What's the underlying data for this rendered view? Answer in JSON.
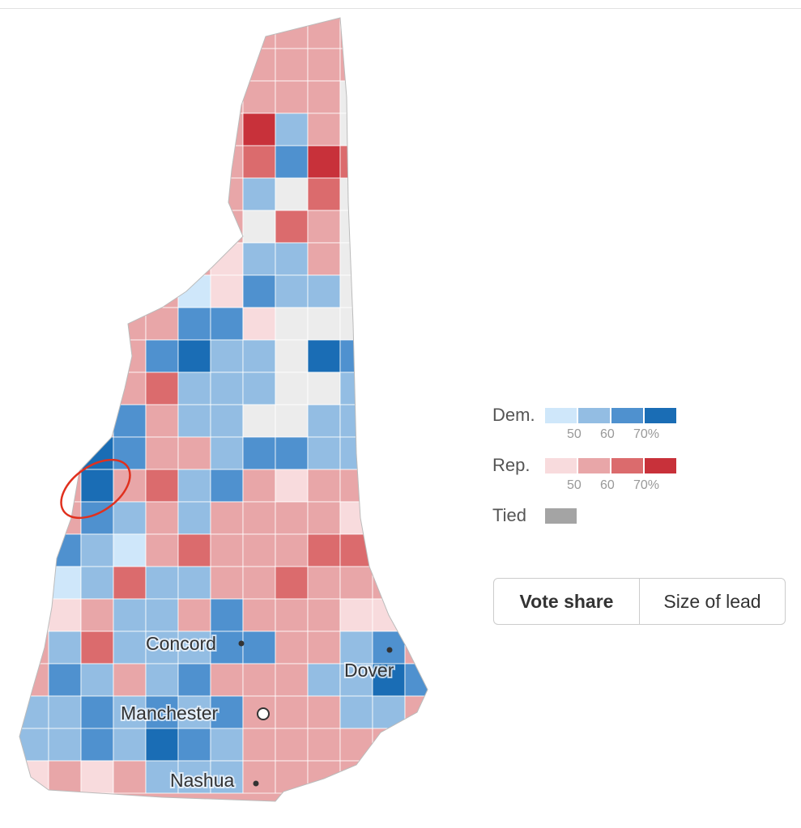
{
  "colors": {
    "a": "#cfe7fa",
    "b": "#93bde3",
    "c": "#4f91cf",
    "d": "#1a6db5",
    "e": "#f8dbdd",
    "f": "#e8a6a8",
    "g": "#db6b6d",
    "h": "#c8313a",
    "n": "#ececec",
    "t": "#a4a4a4"
  },
  "map": {
    "town_shading": [
      "........fff..",
      "........fff..",
      ".......fffn..",
      ".......hbfn..",
      ".......gchg..",
      ".......bngn..",
      ".......ngfn..",
      "......ebbfn..",
      ".....aecbbn..",
      "...ffccennnf.",
      "...fcdbbndcf.",
      "...fgbbbnnbb.",
      "...cfbbnnbbb.",
      "..dcffbccbbt.",
      "..dfgbcfeff..",
      "..cbfbffffe..",
      ".cbafgfffgg..",
      ".abgbbffgff..",
      ".efbbfcfffee.",
      ".bgbbbccffbc.",
      ".cbfbcfffbbdc",
      "bbcbcbcfffbb.",
      "bbcbdcbffff..",
      "efefbbbfff..."
    ],
    "cities": [
      {
        "name": "Concord",
        "marker": "dot"
      },
      {
        "name": "Manchester",
        "marker": "ring"
      },
      {
        "name": "Nashua",
        "marker": "dot"
      },
      {
        "name": "Dover",
        "marker": "dot"
      }
    ],
    "annotation": "red-hand-drawn-circle"
  },
  "legend": {
    "dem_label": "Dem.",
    "rep_label": "Rep.",
    "tied_label": "Tied",
    "ticks": [
      "50",
      "60",
      "70%"
    ]
  },
  "toggle": {
    "options": [
      "Vote share",
      "Size of lead"
    ],
    "selected": "Vote share"
  }
}
